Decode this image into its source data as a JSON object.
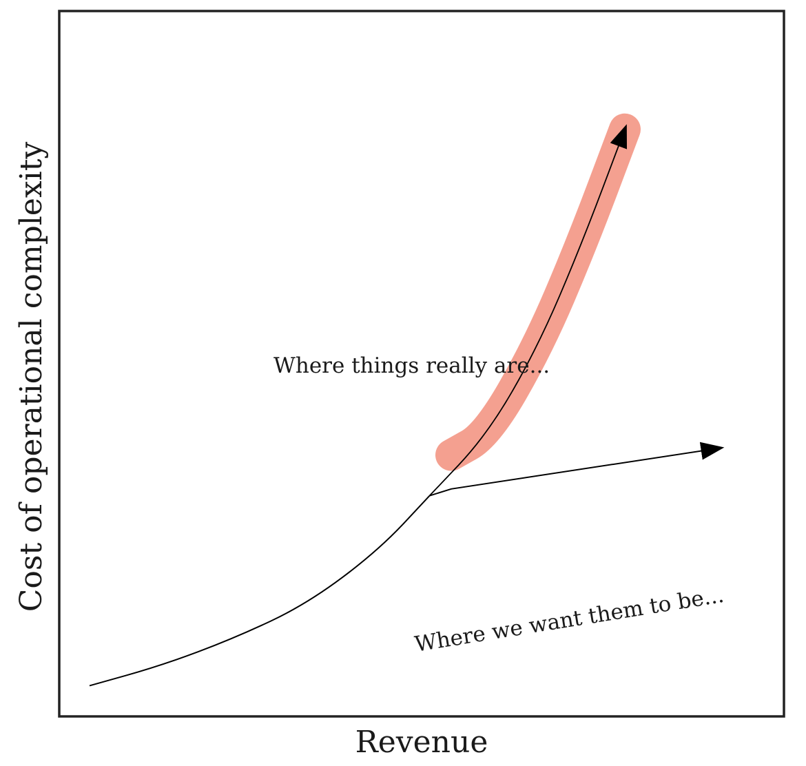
{
  "chart_data": {
    "type": "line",
    "xlabel": "Revenue",
    "ylabel": "Cost of operational complexity",
    "grid": false,
    "legend": "none",
    "colors": {
      "frame": "#222222",
      "curve": "#000000",
      "highlight": "#f4a090"
    },
    "series": [
      {
        "values": [
          [
            0,
            0.03
          ],
          [
            0.1,
            0.06
          ],
          [
            0.2,
            0.1
          ],
          [
            0.3,
            0.15
          ],
          [
            0.4,
            0.23
          ],
          [
            0.47,
            0.31
          ]
        ]
      },
      {
        "values": [
          [
            0.47,
            0.31
          ],
          [
            0.55,
            0.4
          ],
          [
            0.62,
            0.53
          ],
          [
            0.68,
            0.68
          ],
          [
            0.74,
            0.85
          ]
        ],
        "highlighted": true
      },
      {
        "values": [
          [
            0.47,
            0.31
          ],
          [
            0.5,
            0.32
          ],
          [
            0.87,
            0.38
          ]
        ]
      }
    ],
    "annotations": [
      {
        "text": "Where things really are..."
      },
      {
        "text": "Where we want them to be..."
      }
    ]
  }
}
